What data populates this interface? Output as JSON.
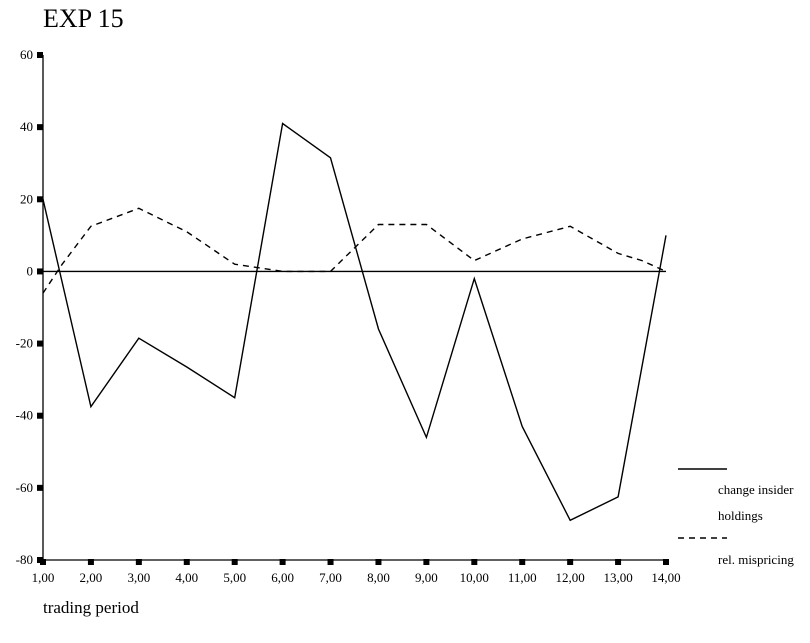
{
  "chart_data": {
    "type": "line",
    "title": "EXP 15",
    "xlabel": "trading period",
    "ylabel": "",
    "x": [
      1,
      2,
      3,
      4,
      5,
      6,
      7,
      8,
      9,
      10,
      11,
      12,
      13,
      14
    ],
    "x_tick_labels": [
      "1,00",
      "2,00",
      "3,00",
      "4,00",
      "5,00",
      "6,00",
      "7,00",
      "8,00",
      "9,00",
      "10,00",
      "11,00",
      "12,00",
      "13,00",
      "14,00"
    ],
    "y_ticks": [
      60,
      40,
      20,
      0,
      -20,
      -40,
      -60,
      -80
    ],
    "ylim": [
      -80,
      60
    ],
    "xlim": [
      1,
      14
    ],
    "grid": false,
    "legend_position": "right",
    "series": [
      {
        "name": "change insider holdings",
        "style": "solid",
        "color": "#000000",
        "points": [
          [
            1,
            20
          ],
          [
            2,
            -37.5
          ],
          [
            3,
            -18.5
          ],
          [
            4,
            -26.5
          ],
          [
            5,
            -35
          ],
          [
            6,
            41
          ],
          [
            7,
            31.5
          ],
          [
            8,
            -16
          ],
          [
            9,
            -46
          ],
          [
            10,
            -2
          ],
          [
            11,
            -43
          ],
          [
            12,
            -69
          ],
          [
            13,
            -62.5
          ],
          [
            14,
            10
          ]
        ]
      },
      {
        "name": "rel. mispricing",
        "style": "dashed",
        "color": "#000000",
        "points": [
          [
            1,
            -6
          ],
          [
            1.4,
            2
          ],
          [
            2,
            12.5
          ],
          [
            3,
            17.5
          ],
          [
            4,
            11
          ],
          [
            5,
            2
          ],
          [
            6,
            0
          ],
          [
            7,
            0
          ],
          [
            8,
            13
          ],
          [
            9,
            13
          ],
          [
            10,
            3
          ],
          [
            11,
            9
          ],
          [
            12,
            12.5
          ],
          [
            13,
            5
          ],
          [
            13.5,
            3
          ],
          [
            14,
            0
          ]
        ]
      }
    ]
  }
}
